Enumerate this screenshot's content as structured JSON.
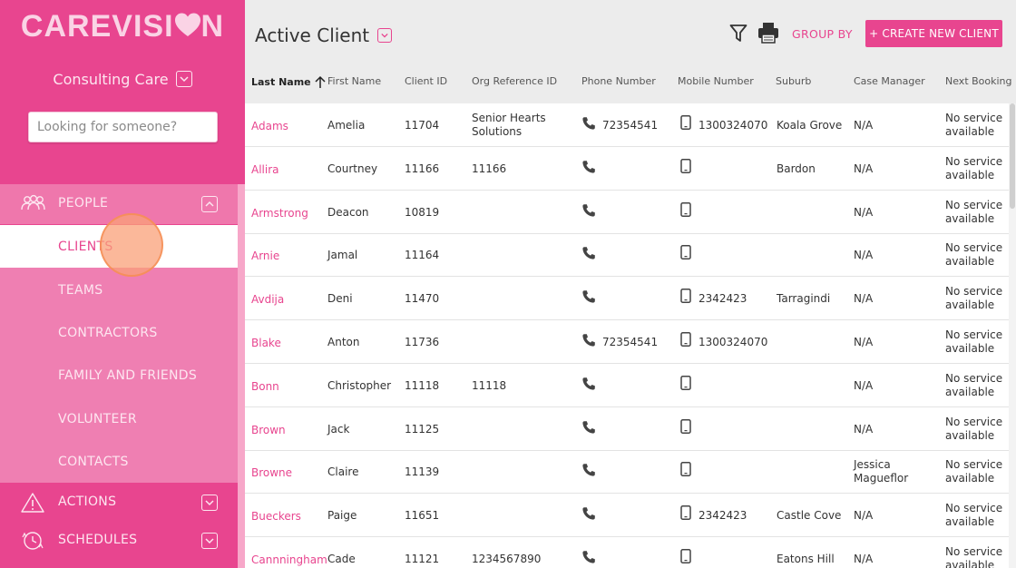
{
  "sidebar": {
    "logo_left": "CAREVISI",
    "logo_right": "N",
    "org_name": "Consulting Care",
    "search_placeholder": "Looking for someone?",
    "people": {
      "label": "PEOPLE",
      "items": [
        "CLIENTS",
        "TEAMS",
        "CONTRACTORS",
        "FAMILY AND FRIENDS",
        "VOLUNTEER",
        "CONTACTS"
      ],
      "active": "CLIENTS"
    },
    "actions_label": "ACTIONS",
    "schedules_label": "SCHEDULES"
  },
  "header": {
    "title": "Active Client",
    "group_by": "GROUP BY",
    "create_button": "+ CREATE NEW CLIENT"
  },
  "table": {
    "columns": [
      "Last Name",
      "First Name",
      "Client ID",
      "Org Reference ID",
      "Phone Number",
      "Mobile Number",
      "Suburb",
      "Case Manager",
      "Next Booking"
    ],
    "rows": [
      {
        "last": "Adams",
        "first": "Amelia",
        "id": "11704",
        "org": "Senior Hearts Solutions",
        "phone": "72354541",
        "mobile": "1300324070",
        "suburb": "Koala Grove",
        "cm": "N/A",
        "next": "No service available"
      },
      {
        "last": "Allira",
        "first": "Courtney",
        "id": "11166",
        "org": "11166",
        "phone": "",
        "mobile": "",
        "suburb": "Bardon",
        "cm": "N/A",
        "next": "No service available"
      },
      {
        "last": "Armstrong",
        "first": "Deacon",
        "id": "10819",
        "org": "",
        "phone": "",
        "mobile": "",
        "suburb": "",
        "cm": "N/A",
        "next": "No service available"
      },
      {
        "last": "Arnie",
        "first": "Jamal",
        "id": "11164",
        "org": "",
        "phone": "",
        "mobile": "",
        "suburb": "",
        "cm": "N/A",
        "next": "No service available"
      },
      {
        "last": "Avdija",
        "first": "Deni",
        "id": "11470",
        "org": "",
        "phone": "",
        "mobile": "2342423",
        "suburb": "Tarragindi",
        "cm": "N/A",
        "next": "No service available"
      },
      {
        "last": "Blake",
        "first": "Anton",
        "id": "11736",
        "org": "",
        "phone": "72354541",
        "mobile": "1300324070",
        "suburb": "",
        "cm": "N/A",
        "next": "No service available"
      },
      {
        "last": "Bonn",
        "first": "Christopher",
        "id": "11118",
        "org": "11118",
        "phone": "",
        "mobile": "",
        "suburb": "",
        "cm": "N/A",
        "next": "No service available"
      },
      {
        "last": "Brown",
        "first": "Jack",
        "id": "11125",
        "org": "",
        "phone": "",
        "mobile": "",
        "suburb": "",
        "cm": "N/A",
        "next": "No service available"
      },
      {
        "last": "Browne",
        "first": "Claire",
        "id": "11139",
        "org": "",
        "phone": "",
        "mobile": "",
        "suburb": "",
        "cm": "Jessica Magueflor",
        "next": "No service available"
      },
      {
        "last": "Bueckers",
        "first": "Paige",
        "id": "11651",
        "org": "",
        "phone": "",
        "mobile": "2342423",
        "suburb": "Castle Cove",
        "cm": "N/A",
        "next": "No service available"
      },
      {
        "last": "Cannningham",
        "first": "Cade",
        "id": "11121",
        "org": "1234567890",
        "phone": "",
        "mobile": "",
        "suburb": "Eatons Hill",
        "cm": "N/A",
        "next": "No service available"
      }
    ]
  },
  "colors": {
    "brand": "#e8458f",
    "sidebar_light": "#ef7fb2",
    "header_bg": "#ececec"
  }
}
